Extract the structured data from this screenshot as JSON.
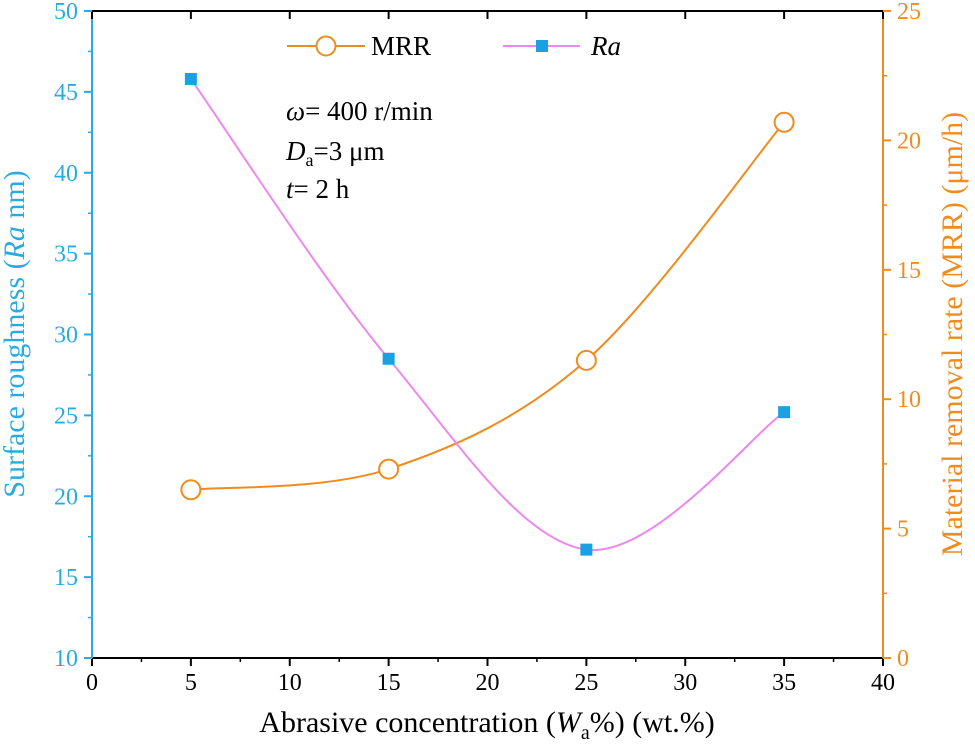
{
  "chart_data": {
    "type": "line",
    "x": [
      5,
      15,
      25,
      35
    ],
    "series": [
      {
        "name": "MRR",
        "axis": "right",
        "values": [
          6.5,
          7.3,
          11.5,
          20.7
        ],
        "color": "#F08C1E",
        "marker": "open-circle"
      },
      {
        "name": "Ra",
        "axis": "left",
        "values": [
          45.8,
          28.5,
          16.7,
          25.2
        ],
        "color": "#EE88EE",
        "marker_color": "#1BA1E2",
        "marker": "filled-square"
      }
    ],
    "xlabel": {
      "pre": "Abrasive concentration (",
      "var": "W",
      "sub": "a",
      "post": "%) (wt.%)"
    },
    "ylabel_left": {
      "pre": "Surface roughness (",
      "var": "Ra",
      "post": " nm)"
    },
    "ylabel_right": "Material removal rate (MRR) (μm/h)",
    "xlim": [
      0,
      40
    ],
    "ylim_left": [
      10,
      50
    ],
    "ylim_right": [
      0,
      25
    ],
    "xticks": [
      "0",
      "5",
      "10",
      "15",
      "20",
      "25",
      "30",
      "35",
      "40"
    ],
    "yticks_left": [
      "10",
      "15",
      "20",
      "25",
      "30",
      "35",
      "40",
      "45",
      "50"
    ],
    "yticks_right": [
      "0",
      "5",
      "10",
      "15",
      "20",
      "25"
    ],
    "legend": [
      {
        "label": "MRR",
        "italic": false
      },
      {
        "label": "Ra",
        "italic": true
      }
    ],
    "legend_position": "top",
    "annotations": [
      {
        "var": "ω",
        "sub": "",
        "text": "= 400 r/min"
      },
      {
        "var": "D",
        "sub": "a",
        "text": "=3 μm"
      },
      {
        "var": "t",
        "sub": "",
        "text": "= 2 h"
      }
    ],
    "colors": {
      "left_axis": "#29ABE2",
      "right_axis": "#F08C1E",
      "mrr": "#F08C1E",
      "ra_line": "#EE88EE",
      "ra_marker": "#1BA1E2"
    }
  }
}
